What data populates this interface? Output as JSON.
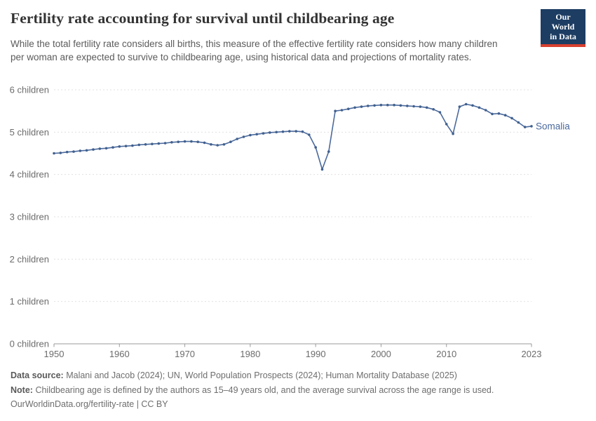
{
  "header": {
    "title": "Fertility rate accounting for survival until childbearing age",
    "subtitle": "While the total fertility rate considers all births, this measure of the effective fertility rate considers how many children per woman are expected to survive to childbearing age, using historical data and projections of mortality rates.",
    "logo": {
      "line1": "Our World",
      "line2": "in Data"
    }
  },
  "chart_data": {
    "type": "line",
    "title": "Fertility rate accounting for survival until childbearing age",
    "xlabel": "",
    "ylabel": "children",
    "xlim": [
      1950,
      2023
    ],
    "ylim": [
      0,
      6
    ],
    "grid": "horizontal-dashed",
    "legend_position": "end-of-line-label",
    "x_ticks": [
      1950,
      1960,
      1970,
      1980,
      1990,
      2000,
      2010,
      2023
    ],
    "y_ticks": [
      {
        "value": 0,
        "label": "0 children"
      },
      {
        "value": 1,
        "label": "1 children"
      },
      {
        "value": 2,
        "label": "2 children"
      },
      {
        "value": 3,
        "label": "3 children"
      },
      {
        "value": 4,
        "label": "4 children"
      },
      {
        "value": 5,
        "label": "5 children"
      },
      {
        "value": 6,
        "label": "6 children"
      }
    ],
    "series": [
      {
        "name": "Somalia",
        "color": "#4c6a9c",
        "dot_color": "#40608f",
        "x": [
          1950,
          1951,
          1952,
          1953,
          1954,
          1955,
          1956,
          1957,
          1958,
          1959,
          1960,
          1961,
          1962,
          1963,
          1964,
          1965,
          1966,
          1967,
          1968,
          1969,
          1970,
          1971,
          1972,
          1973,
          1974,
          1975,
          1976,
          1977,
          1978,
          1979,
          1980,
          1981,
          1982,
          1983,
          1984,
          1985,
          1986,
          1987,
          1988,
          1989,
          1990,
          1991,
          1992,
          1993,
          1994,
          1995,
          1996,
          1997,
          1998,
          1999,
          2000,
          2001,
          2002,
          2003,
          2004,
          2005,
          2006,
          2007,
          2008,
          2009,
          2010,
          2011,
          2012,
          2013,
          2014,
          2015,
          2016,
          2017,
          2018,
          2019,
          2020,
          2021,
          2022,
          2023
        ],
        "values": [
          4.5,
          4.51,
          4.53,
          4.54,
          4.56,
          4.57,
          4.59,
          4.61,
          4.62,
          4.64,
          4.66,
          4.67,
          4.68,
          4.7,
          4.71,
          4.72,
          4.73,
          4.74,
          4.76,
          4.77,
          4.78,
          4.78,
          4.77,
          4.75,
          4.71,
          4.69,
          4.71,
          4.77,
          4.84,
          4.89,
          4.93,
          4.95,
          4.97,
          4.99,
          5.0,
          5.01,
          5.02,
          5.02,
          5.01,
          4.94,
          4.64,
          4.12,
          4.54,
          5.5,
          5.52,
          5.55,
          5.58,
          5.6,
          5.62,
          5.63,
          5.64,
          5.64,
          5.64,
          5.63,
          5.62,
          5.61,
          5.6,
          5.58,
          5.54,
          5.47,
          5.19,
          4.96,
          5.6,
          5.66,
          5.63,
          5.58,
          5.52,
          5.43,
          5.44,
          5.4,
          5.33,
          5.23,
          5.12,
          5.14
        ]
      }
    ]
  },
  "footer": {
    "data_source_label": "Data source:",
    "data_source": "Malani and Jacob (2024); UN, World Population Prospects (2024); Human Mortality Database (2025)",
    "note_label": "Note:",
    "note": "Childbearing age is defined by the authors as 15–49 years old, and the average survival across the age range is used.",
    "license": "OurWorldinData.org/fertility-rate | CC BY"
  },
  "colors": {
    "accent_line": "#4c6a9c",
    "logo_bg": "#1d3d63",
    "logo_red": "#d8402f",
    "grid": "#e0e0e0",
    "axis": "#9a9a9a",
    "tick_text": "#6c6c6c",
    "title_text": "#333333",
    "subtitle_text": "#5b5b5b"
  }
}
